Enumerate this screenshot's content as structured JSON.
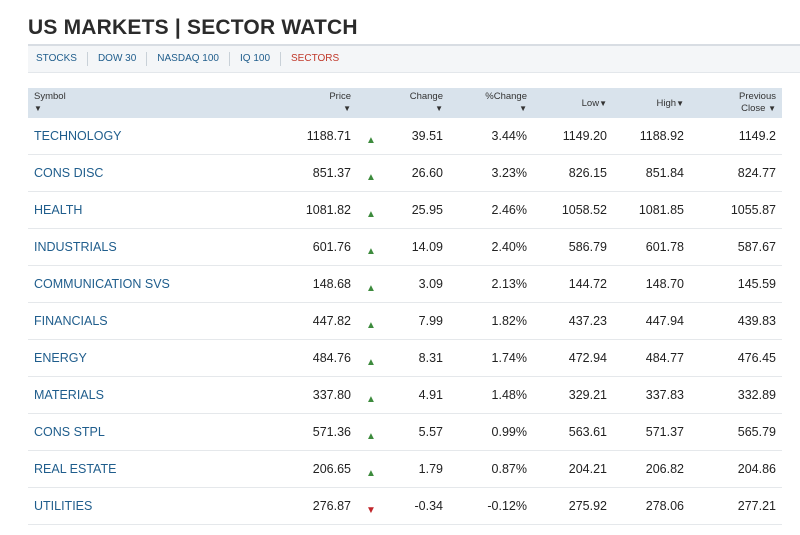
{
  "title": "US MARKETS | SECTOR WATCH",
  "tabs": [
    {
      "label": "STOCKS",
      "active": false
    },
    {
      "label": "DOW 30",
      "active": false
    },
    {
      "label": "NASDAQ 100",
      "active": false
    },
    {
      "label": "IQ 100",
      "active": false
    },
    {
      "label": "SECTORS",
      "active": true
    }
  ],
  "colors": {
    "link": "#1f5d8c",
    "active_tab": "#c0392b",
    "up": "#3d8b3d",
    "down": "#c0262b",
    "header_bg": "#d9e3ec"
  },
  "columns": {
    "symbol": "Symbol",
    "price": "Price",
    "change": "Change",
    "pct_change": "%Change",
    "low": "Low",
    "high": "High",
    "prev_close_line1": "Previous",
    "prev_close_line2": "Close",
    "sort_arrow": "▼"
  },
  "rows": [
    {
      "symbol": "TECHNOLOGY",
      "price": "1188.71",
      "direction": "up",
      "change": "39.51",
      "pct": "3.44%",
      "low": "1149.20",
      "high": "1188.92",
      "prev": "1149.2"
    },
    {
      "symbol": "CONS DISC",
      "price": "851.37",
      "direction": "up",
      "change": "26.60",
      "pct": "3.23%",
      "low": "826.15",
      "high": "851.84",
      "prev": "824.77"
    },
    {
      "symbol": "HEALTH",
      "price": "1081.82",
      "direction": "up",
      "change": "25.95",
      "pct": "2.46%",
      "low": "1058.52",
      "high": "1081.85",
      "prev": "1055.87"
    },
    {
      "symbol": "INDUSTRIALS",
      "price": "601.76",
      "direction": "up",
      "change": "14.09",
      "pct": "2.40%",
      "low": "586.79",
      "high": "601.78",
      "prev": "587.67"
    },
    {
      "symbol": "COMMUNICATION SVS",
      "price": "148.68",
      "direction": "up",
      "change": "3.09",
      "pct": "2.13%",
      "low": "144.72",
      "high": "148.70",
      "prev": "145.59"
    },
    {
      "symbol": "FINANCIALS",
      "price": "447.82",
      "direction": "up",
      "change": "7.99",
      "pct": "1.82%",
      "low": "437.23",
      "high": "447.94",
      "prev": "439.83"
    },
    {
      "symbol": "ENERGY",
      "price": "484.76",
      "direction": "up",
      "change": "8.31",
      "pct": "1.74%",
      "low": "472.94",
      "high": "484.77",
      "prev": "476.45"
    },
    {
      "symbol": "MATERIALS",
      "price": "337.80",
      "direction": "up",
      "change": "4.91",
      "pct": "1.48%",
      "low": "329.21",
      "high": "337.83",
      "prev": "332.89"
    },
    {
      "symbol": "CONS STPL",
      "price": "571.36",
      "direction": "up",
      "change": "5.57",
      "pct": "0.99%",
      "low": "563.61",
      "high": "571.37",
      "prev": "565.79"
    },
    {
      "symbol": "REAL ESTATE",
      "price": "206.65",
      "direction": "up",
      "change": "1.79",
      "pct": "0.87%",
      "low": "204.21",
      "high": "206.82",
      "prev": "204.86"
    },
    {
      "symbol": "UTILITIES",
      "price": "276.87",
      "direction": "down",
      "change": "-0.34",
      "pct": "-0.12%",
      "low": "275.92",
      "high": "278.06",
      "prev": "277.21"
    }
  ]
}
